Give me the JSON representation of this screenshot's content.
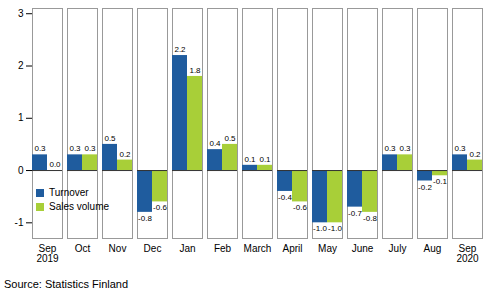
{
  "chart_data": {
    "type": "bar",
    "caption": "Source: Statistics Finland",
    "categories": [
      "Sep\n2019",
      "Oct",
      "Nov",
      "Dec",
      "Jan",
      "Feb",
      "March",
      "April",
      "May",
      "June",
      "July",
      "Aug",
      "Sep\n2020"
    ],
    "series": [
      {
        "name": "Turnover",
        "color": "#1f5c9e",
        "values": [
          0.3,
          0.3,
          0.5,
          -0.8,
          2.2,
          0.4,
          0.1,
          -0.4,
          -1.0,
          -0.7,
          0.3,
          -0.2,
          0.3
        ],
        "value_labels": [
          "0.3",
          "0.3",
          "0.5",
          "-0.8",
          "2.2",
          "0.4",
          "0.1",
          "-0.4",
          "-1.0",
          "-0.7",
          "0.3",
          "-0.2",
          "0.3"
        ]
      },
      {
        "name": "Sales volume",
        "color": "#a8cf38",
        "values": [
          0.0,
          0.3,
          0.2,
          -0.6,
          1.8,
          0.5,
          0.1,
          -0.6,
          -1.0,
          -0.8,
          0.3,
          -0.1,
          0.2
        ],
        "value_labels": [
          "0.0",
          "0.3",
          "0.2",
          "-0.6",
          "1.8",
          "0.5",
          "0.1",
          "-0.6",
          "-1.0",
          "-0.8",
          "0.3",
          "-0.1",
          "0.2"
        ]
      }
    ],
    "ylim": [
      -1.3,
      3.1
    ],
    "yticks": [
      -1,
      0,
      1,
      2,
      3
    ],
    "grid": false,
    "legend": "bottom-left",
    "data_labels": true
  }
}
